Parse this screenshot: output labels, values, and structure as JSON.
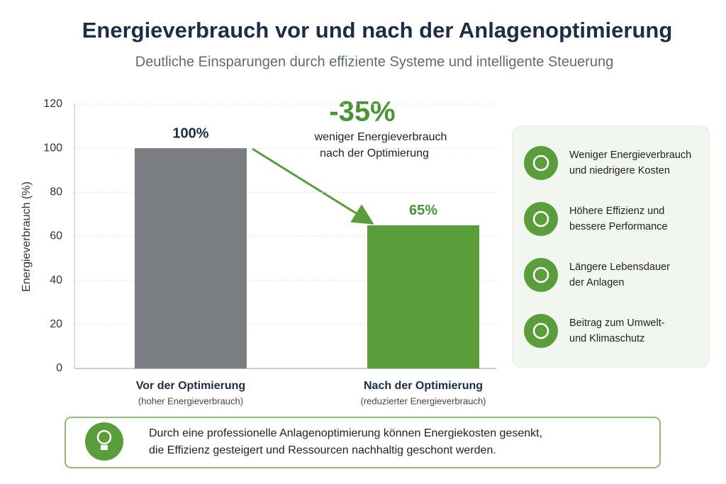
{
  "chart_data": {
    "type": "bar",
    "title": "Energieverbrauch vor und nach der Anlagenoptimierung",
    "subtitle": "Deutliche Einsparungen durch effiziente Systeme und intelligente Steuerung",
    "ylabel": "Energieverbrauch (%)",
    "categories": [
      "Vor der Optimierung",
      "Nach der Optimierung"
    ],
    "category_notes": [
      "(hoher Energieverbrauch)",
      "(reduzierter Energieverbrauch)"
    ],
    "values": [
      100,
      65
    ],
    "value_labels": [
      "100%",
      "65%"
    ],
    "colors": [
      "#7a7d82",
      "#5a9e3c"
    ],
    "ylim": [
      0,
      120
    ],
    "yticks": [
      0,
      20,
      40,
      60,
      80,
      100,
      120
    ],
    "grid": true,
    "annotation": {
      "headline": "-35%",
      "lines": [
        "weniger Energieverbrauch",
        "nach der Optimierung"
      ]
    }
  },
  "benefits": [
    [
      "Weniger Energieverbrauch",
      "und niedrigere Kosten"
    ],
    [
      "Höhere Effizienz und",
      "bessere Performance"
    ],
    [
      "Längere Lebensdauer",
      "der Anlagen"
    ],
    [
      "Beitrag zum Umwelt-",
      "und Klimaschutz"
    ]
  ],
  "note": [
    "Durch eine professionelle Anlagenoptimierung können Energiekosten gesenkt,",
    "die Effizienz gesteigert und Ressourcen nachhaltig geschont werden."
  ]
}
